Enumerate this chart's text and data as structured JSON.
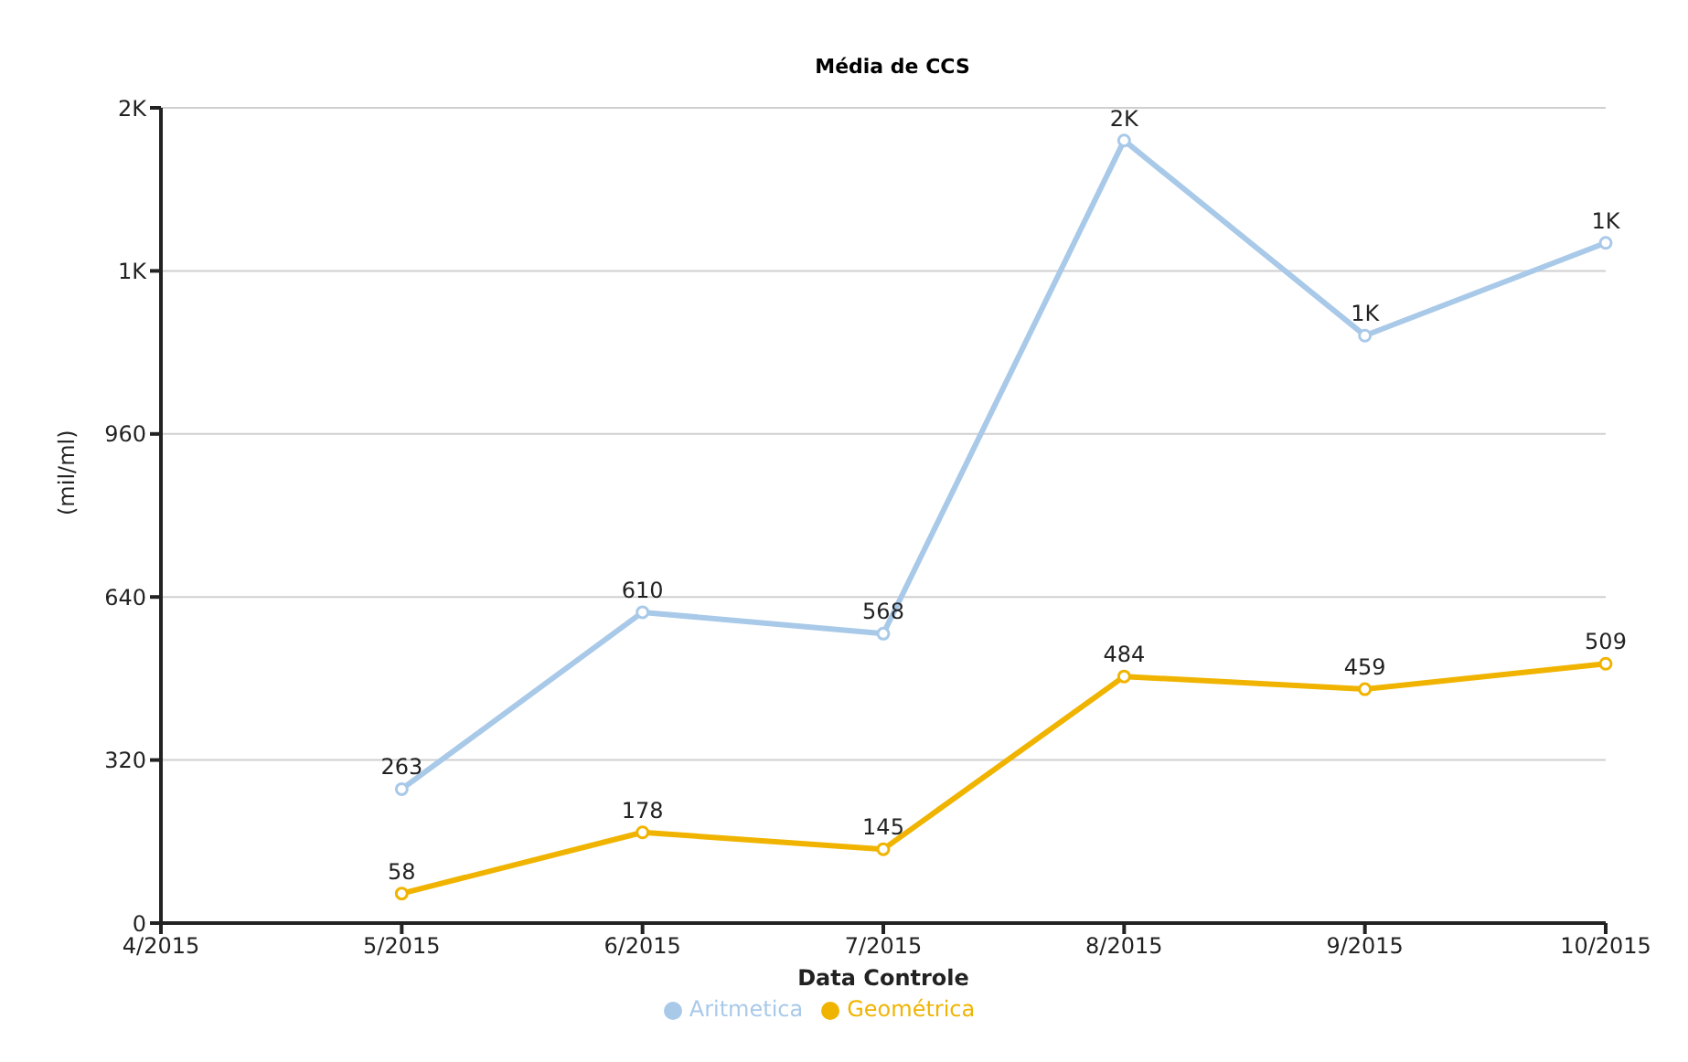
{
  "chart_data": {
    "type": "line",
    "title": "Média de CCS",
    "xlabel": "Data Controle",
    "ylabel": "(mil/ml)",
    "categories": [
      "4/2015",
      "5/2015",
      "6/2015",
      "7/2015",
      "8/2015",
      "9/2015",
      "10/2015"
    ],
    "series": [
      {
        "name": "Aritmetica",
        "color": "#a9c9e9",
        "values": [
          null,
          263,
          610,
          568,
          1536,
          1153,
          1335
        ],
        "value_labels": [
          null,
          "263",
          "610",
          "568",
          "2K",
          "1K",
          "1K"
        ]
      },
      {
        "name": "Geométrica",
        "color": "#f0b400",
        "values": [
          null,
          58,
          178,
          145,
          484,
          459,
          509
        ],
        "value_labels": [
          null,
          "58",
          "178",
          "145",
          "484",
          "459",
          "509"
        ]
      }
    ],
    "ylim": [
      0,
      1600
    ],
    "yticks": [
      0,
      320,
      640,
      960,
      {
        "value": 1280,
        "label": "1K"
      },
      {
        "value": 1600,
        "label": "2K"
      }
    ],
    "grid": "y",
    "legend": "bottom",
    "marker": "circle",
    "line_style": "solid"
  }
}
